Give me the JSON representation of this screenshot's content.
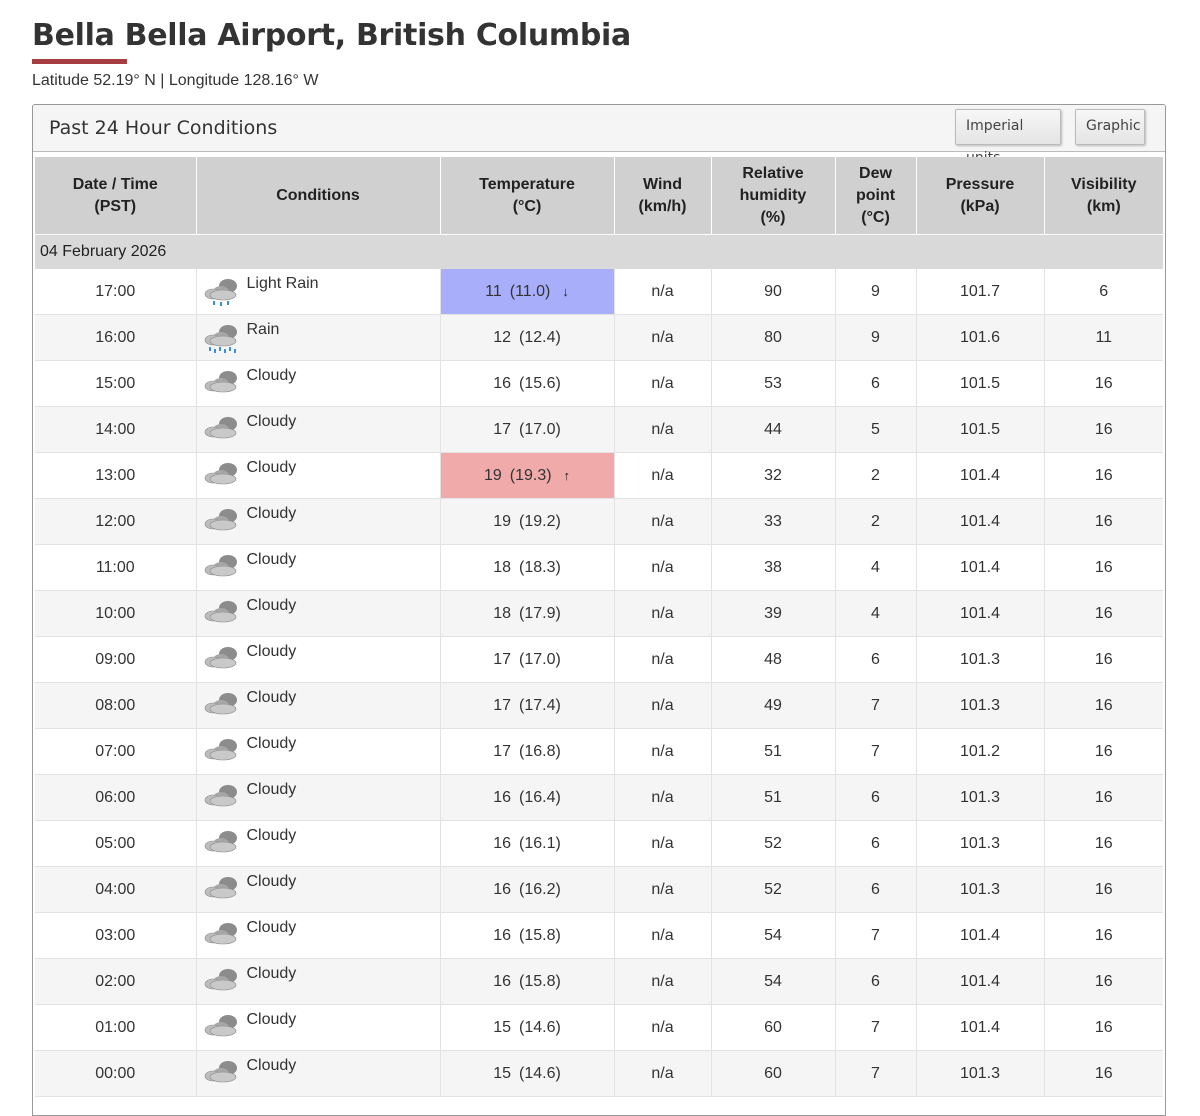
{
  "page": {
    "title": "Bella Bella Airport, British Columbia",
    "coordinates": "Latitude 52.19° N | Longitude 128.16° W"
  },
  "panel": {
    "title": "Past 24 Hour Conditions",
    "buttons": {
      "imperial": "Imperial units",
      "graphic": "Graphic"
    }
  },
  "table": {
    "headers": [
      [
        "Date / Time",
        "(PST)"
      ],
      [
        "Conditions"
      ],
      [
        "Temperature",
        "(°C)"
      ],
      [
        "Wind",
        "(km/h)"
      ],
      [
        "Relative",
        "humidity",
        "(%)"
      ],
      [
        "Dew",
        "point",
        "(°C)"
      ],
      [
        "Pressure",
        "(kPa)"
      ],
      [
        "Visibility",
        "(km)"
      ]
    ],
    "date": "04 February 2026",
    "rows": [
      {
        "time": "17:00",
        "icon": "light-rain-icon",
        "cond": "Light Rain",
        "temp": "11",
        "temp_exact": "(11.0)",
        "extreme": "low",
        "wind": "n/a",
        "rh": "90",
        "dew": "9",
        "pres": "101.7",
        "vis": "6"
      },
      {
        "time": "16:00",
        "icon": "rain-icon",
        "cond": "Rain",
        "temp": "12",
        "temp_exact": "(12.4)",
        "extreme": "",
        "wind": "n/a",
        "rh": "80",
        "dew": "9",
        "pres": "101.6",
        "vis": "11"
      },
      {
        "time": "15:00",
        "icon": "cloudy-icon",
        "cond": "Cloudy",
        "temp": "16",
        "temp_exact": "(15.6)",
        "extreme": "",
        "wind": "n/a",
        "rh": "53",
        "dew": "6",
        "pres": "101.5",
        "vis": "16"
      },
      {
        "time": "14:00",
        "icon": "cloudy-icon",
        "cond": "Cloudy",
        "temp": "17",
        "temp_exact": "(17.0)",
        "extreme": "",
        "wind": "n/a",
        "rh": "44",
        "dew": "5",
        "pres": "101.5",
        "vis": "16"
      },
      {
        "time": "13:00",
        "icon": "cloudy-icon",
        "cond": "Cloudy",
        "temp": "19",
        "temp_exact": "(19.3)",
        "extreme": "high",
        "wind": "n/a",
        "rh": "32",
        "dew": "2",
        "pres": "101.4",
        "vis": "16"
      },
      {
        "time": "12:00",
        "icon": "cloudy-icon",
        "cond": "Cloudy",
        "temp": "19",
        "temp_exact": "(19.2)",
        "extreme": "",
        "wind": "n/a",
        "rh": "33",
        "dew": "2",
        "pres": "101.4",
        "vis": "16"
      },
      {
        "time": "11:00",
        "icon": "cloudy-icon",
        "cond": "Cloudy",
        "temp": "18",
        "temp_exact": "(18.3)",
        "extreme": "",
        "wind": "n/a",
        "rh": "38",
        "dew": "4",
        "pres": "101.4",
        "vis": "16"
      },
      {
        "time": "10:00",
        "icon": "cloudy-icon",
        "cond": "Cloudy",
        "temp": "18",
        "temp_exact": "(17.9)",
        "extreme": "",
        "wind": "n/a",
        "rh": "39",
        "dew": "4",
        "pres": "101.4",
        "vis": "16"
      },
      {
        "time": "09:00",
        "icon": "cloudy-icon",
        "cond": "Cloudy",
        "temp": "17",
        "temp_exact": "(17.0)",
        "extreme": "",
        "wind": "n/a",
        "rh": "48",
        "dew": "6",
        "pres": "101.3",
        "vis": "16"
      },
      {
        "time": "08:00",
        "icon": "cloudy-icon",
        "cond": "Cloudy",
        "temp": "17",
        "temp_exact": "(17.4)",
        "extreme": "",
        "wind": "n/a",
        "rh": "49",
        "dew": "7",
        "pres": "101.3",
        "vis": "16"
      },
      {
        "time": "07:00",
        "icon": "cloudy-icon",
        "cond": "Cloudy",
        "temp": "17",
        "temp_exact": "(16.8)",
        "extreme": "",
        "wind": "n/a",
        "rh": "51",
        "dew": "7",
        "pres": "101.2",
        "vis": "16"
      },
      {
        "time": "06:00",
        "icon": "cloudy-icon",
        "cond": "Cloudy",
        "temp": "16",
        "temp_exact": "(16.4)",
        "extreme": "",
        "wind": "n/a",
        "rh": "51",
        "dew": "6",
        "pres": "101.3",
        "vis": "16"
      },
      {
        "time": "05:00",
        "icon": "cloudy-icon",
        "cond": "Cloudy",
        "temp": "16",
        "temp_exact": "(16.1)",
        "extreme": "",
        "wind": "n/a",
        "rh": "52",
        "dew": "6",
        "pres": "101.3",
        "vis": "16"
      },
      {
        "time": "04:00",
        "icon": "cloudy-icon",
        "cond": "Cloudy",
        "temp": "16",
        "temp_exact": "(16.2)",
        "extreme": "",
        "wind": "n/a",
        "rh": "52",
        "dew": "6",
        "pres": "101.3",
        "vis": "16"
      },
      {
        "time": "03:00",
        "icon": "cloudy-icon",
        "cond": "Cloudy",
        "temp": "16",
        "temp_exact": "(15.8)",
        "extreme": "",
        "wind": "n/a",
        "rh": "54",
        "dew": "7",
        "pres": "101.4",
        "vis": "16"
      },
      {
        "time": "02:00",
        "icon": "cloudy-icon",
        "cond": "Cloudy",
        "temp": "16",
        "temp_exact": "(15.8)",
        "extreme": "",
        "wind": "n/a",
        "rh": "54",
        "dew": "6",
        "pres": "101.4",
        "vis": "16"
      },
      {
        "time": "01:00",
        "icon": "cloudy-icon",
        "cond": "Cloudy",
        "temp": "15",
        "temp_exact": "(14.6)",
        "extreme": "",
        "wind": "n/a",
        "rh": "60",
        "dew": "7",
        "pres": "101.4",
        "vis": "16"
      },
      {
        "time": "00:00",
        "icon": "cloudy-icon",
        "cond": "Cloudy",
        "temp": "15",
        "temp_exact": "(14.6)",
        "extreme": "",
        "wind": "n/a",
        "rh": "60",
        "dew": "7",
        "pres": "101.3",
        "vis": "16"
      }
    ]
  },
  "colors": {
    "accent": "#a63d40",
    "low_temp_bg": "#a9aefa",
    "high_temp_bg": "#f1aaaa",
    "header_bg": "#d0d0d0"
  }
}
